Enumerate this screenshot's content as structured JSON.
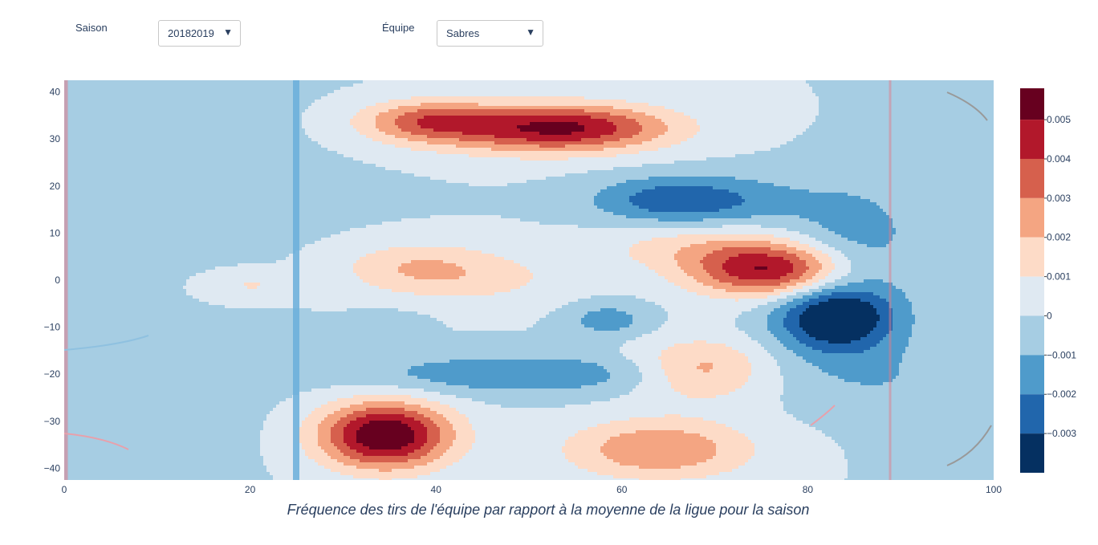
{
  "controls": {
    "season": {
      "label": "Saison",
      "value": "20182019"
    },
    "team": {
      "label": "Équipe",
      "value": "Sabres"
    }
  },
  "chart_data": {
    "type": "contour",
    "title": "",
    "caption": "Fréquence des tirs de l'équipe par rapport à la moyenne de la ligue pour la saison",
    "xlim": [
      0,
      100
    ],
    "ylim": [
      -42.5,
      42.5
    ],
    "x_ticks": [
      0,
      20,
      40,
      60,
      80,
      100
    ],
    "y_ticks": [
      40,
      30,
      20,
      10,
      0,
      -10,
      -20,
      -30,
      -40
    ],
    "colorbar": {
      "range": [
        -0.004,
        0.0058
      ],
      "ticks": [
        0.005,
        0.004,
        0.003,
        0.002,
        0.001,
        0,
        -0.001,
        -0.002,
        -0.003
      ],
      "tick_labels": [
        "0.005",
        "0.004",
        "0.003",
        "0.002",
        "0.001",
        "0",
        "−0.001",
        "−0.002",
        "−0.003"
      ],
      "bands": [
        {
          "from": 0.005,
          "to": 0.0058,
          "color": "#67001f"
        },
        {
          "from": 0.004,
          "to": 0.005,
          "color": "#b2182b"
        },
        {
          "from": 0.003,
          "to": 0.004,
          "color": "#d6604d"
        },
        {
          "from": 0.002,
          "to": 0.003,
          "color": "#f4a582"
        },
        {
          "from": 0.001,
          "to": 0.002,
          "color": "#fddbc7"
        },
        {
          "from": 0.0,
          "to": 0.001,
          "color": "#dfe9f2"
        },
        {
          "from": -0.001,
          "to": 0.0,
          "color": "#a6cde3"
        },
        {
          "from": -0.002,
          "to": -0.001,
          "color": "#4f9bcb"
        },
        {
          "from": -0.003,
          "to": -0.002,
          "color": "#2166ac"
        },
        {
          "from": -0.004,
          "to": -0.003,
          "color": "#053061"
        }
      ]
    },
    "hotspots": [
      {
        "x": 34.5,
        "y": -33,
        "sx": 5,
        "sy": 5,
        "amp": 0.0062
      },
      {
        "x": 54,
        "y": 32.5,
        "sx": 8,
        "sy": 3.5,
        "amp": 0.0046
      },
      {
        "x": 39,
        "y": 34,
        "sx": 5,
        "sy": 3,
        "amp": 0.003
      },
      {
        "x": 46,
        "y": 31,
        "sx": 10,
        "sy": 4,
        "amp": 0.001
      },
      {
        "x": 76,
        "y": 2,
        "sx": 6,
        "sy": 4,
        "amp": 0.005
      },
      {
        "x": 68,
        "y": 7,
        "sx": 8,
        "sy": 3.5,
        "amp": 0.0014
      },
      {
        "x": 38,
        "y": 2.5,
        "sx": 6,
        "sy": 4,
        "amp": 0.002
      },
      {
        "x": 47,
        "y": 0,
        "sx": 6,
        "sy": 4,
        "amp": 0.0009
      },
      {
        "x": 20,
        "y": -1,
        "sx": 3,
        "sy": 2,
        "amp": 0.0011
      },
      {
        "x": 68.5,
        "y": -19,
        "sx": 5,
        "sy": 4.5,
        "amp": 0.0025
      },
      {
        "x": 64,
        "y": -36,
        "sx": 7,
        "sy": 4.5,
        "amp": 0.003
      },
      {
        "x": 83,
        "y": -8,
        "sx": 4.5,
        "sy": 5,
        "amp": -0.0044
      },
      {
        "x": 85,
        "y": 8,
        "sx": 5,
        "sy": 9,
        "amp": -0.0016
      },
      {
        "x": 86,
        "y": -20,
        "sx": 6,
        "sy": 6,
        "amp": -0.0009
      },
      {
        "x": 65,
        "y": 17,
        "sx": 6,
        "sy": 3.5,
        "amp": -0.0024
      },
      {
        "x": 73,
        "y": 17,
        "sx": 6,
        "sy": 4,
        "amp": -0.001
      },
      {
        "x": 58.5,
        "y": -8.5,
        "sx": 3,
        "sy": 2.5,
        "amp": -0.0016
      },
      {
        "x": 49,
        "y": -20,
        "sx": 12,
        "sy": 3,
        "amp": -0.0019
      },
      {
        "x": 16,
        "y": 22,
        "sx": 12,
        "sy": 12,
        "amp": -0.0004
      },
      {
        "x": 10,
        "y": -28,
        "sx": 12,
        "sy": 10,
        "amp": -0.0003
      },
      {
        "x": 95,
        "y": -30,
        "sx": 5,
        "sy": 8,
        "amp": -0.0006
      },
      {
        "x": 35,
        "y": -8.5,
        "sx": 3,
        "sy": 2,
        "amp": -0.0004
      }
    ]
  }
}
